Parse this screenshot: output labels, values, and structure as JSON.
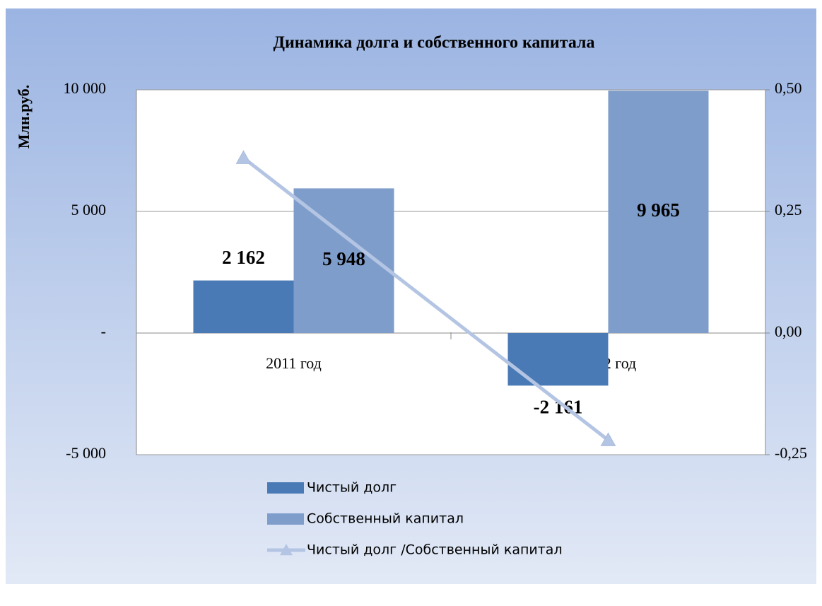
{
  "chart_data": {
    "type": "bar",
    "title": "Динамика долга и собственного капитала",
    "ylabel": "Млн.руб.",
    "categories": [
      "2011 год",
      "2012 год"
    ],
    "series": [
      {
        "name": "Чистый долг",
        "color": "#4a7ab5",
        "values": [
          2162,
          -2161
        ],
        "value_labels": [
          "2 162",
          "-2 161"
        ]
      },
      {
        "name": "Собственный капитал",
        "color": "#7f9dcb",
        "values": [
          5948,
          9965
        ],
        "value_labels": [
          "5 948",
          "9 965"
        ]
      },
      {
        "name": "Чистый долг /Собственный капитал",
        "type": "line",
        "axis": "y2",
        "color": "#b4c5e4",
        "values": [
          0.36,
          -0.22
        ]
      }
    ],
    "ylim": [
      -5000,
      10000
    ],
    "yticks": [
      {
        "value": -5000,
        "label": "-5 000"
      },
      {
        "value": 0,
        "label": "-"
      },
      {
        "value": 5000,
        "label": "5 000"
      },
      {
        "value": 10000,
        "label": "10 000"
      }
    ],
    "y2lim": [
      -0.25,
      0.5
    ],
    "y2ticks": [
      {
        "value": -0.25,
        "label": "-0,25"
      },
      {
        "value": 0,
        "label": "0,00"
      },
      {
        "value": 0.25,
        "label": "0,25"
      },
      {
        "value": 0.5,
        "label": "0,50"
      }
    ],
    "grid": true
  }
}
